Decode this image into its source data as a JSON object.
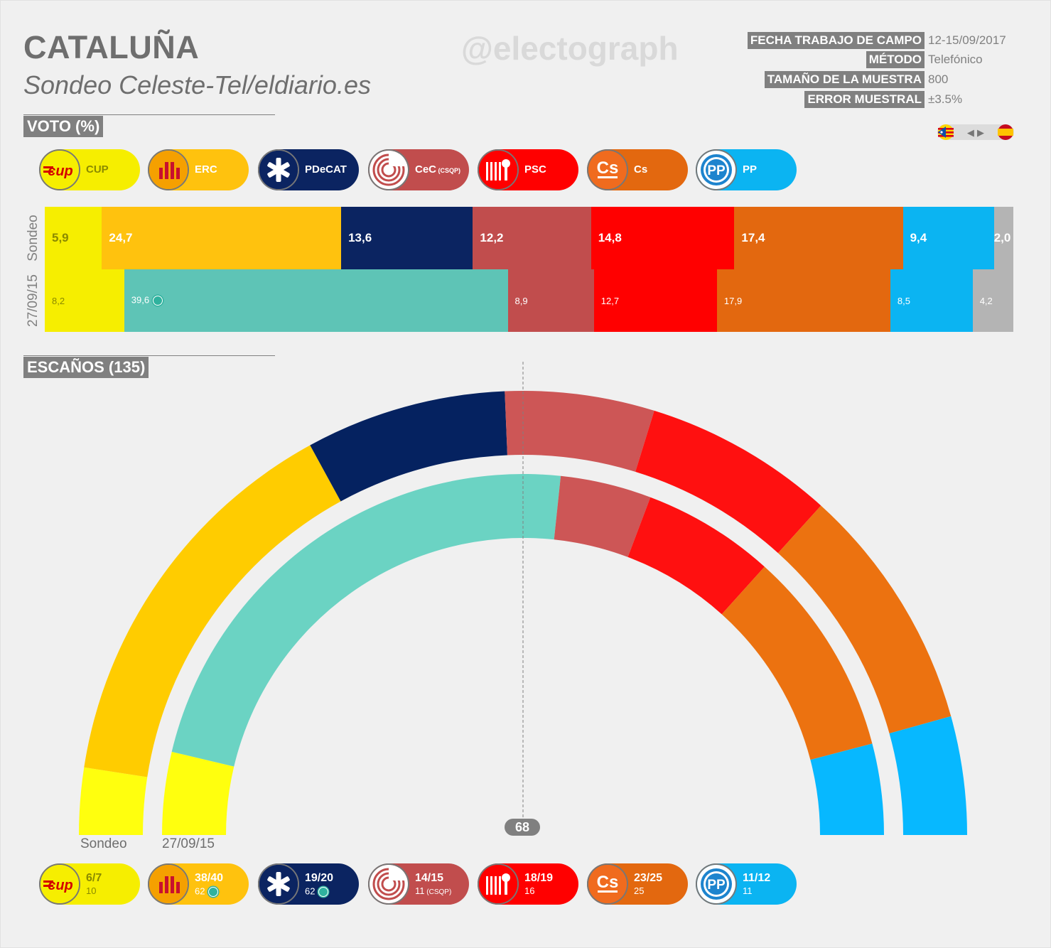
{
  "header": {
    "title": "CATALUÑA",
    "subtitle": "Sondeo Celeste-Tel/eldiario.es",
    "watermark": "@electograph"
  },
  "meta": [
    {
      "key": "FECHA TRABAJO DE CAMPO",
      "value": "12-15/09/2017"
    },
    {
      "key": "MÉTODO",
      "value": "Telefónico"
    },
    {
      "key": "TAMAÑO DE LA MUESTRA",
      "value": "800"
    },
    {
      "key": "ERROR MUESTRAL",
      "value": "±3.5%"
    }
  ],
  "flags": {
    "left": "catalan-flag-icon",
    "arrows": "◀ ▶",
    "right": "spanish-flag-icon"
  },
  "sections": {
    "vote": "VOTO (%)",
    "seats": "ESCAÑOS (135)"
  },
  "parties": [
    {
      "id": "cup",
      "name": "CUP",
      "color": "#f6ee00",
      "logo": "cup-logo-icon",
      "logo_text": "cup",
      "text_color": "#8a8a00",
      "seats": "6/7",
      "prev_seats": "10",
      "jxs": false
    },
    {
      "id": "erc",
      "name": "ERC",
      "color": "#ffc20e",
      "logo": "erc-logo-icon",
      "logo_text": "",
      "text_color": "#ffffff",
      "seats": "38/40",
      "prev_seats": "62",
      "jxs": true
    },
    {
      "id": "pdecat",
      "name": "PDeCAT",
      "color": "#0b2461",
      "logo": "pdecat-logo-icon",
      "logo_text": "",
      "text_color": "#ffffff",
      "seats": "19/20",
      "prev_seats": "62",
      "jxs": true
    },
    {
      "id": "cec",
      "name": "CeC",
      "name_sub": "(CSQP)",
      "color": "#c14d4d",
      "logo": "cec-logo-icon",
      "logo_text": "",
      "text_color": "#ffffff",
      "seats": "14/15",
      "prev_seats": "11",
      "prev_sub": "(CSQP)",
      "jxs": false
    },
    {
      "id": "psc",
      "name": "PSC",
      "color": "#ff0000",
      "logo": "psc-logo-icon",
      "logo_text": "",
      "text_color": "#ffffff",
      "seats": "18/19",
      "prev_seats": "16",
      "jxs": false
    },
    {
      "id": "cs",
      "name": "Cs",
      "color": "#e3680f",
      "logo": "cs-logo-icon",
      "logo_text": "Cs",
      "text_color": "#ffffff",
      "seats": "23/25",
      "prev_seats": "25",
      "jxs": false
    },
    {
      "id": "pp",
      "name": "PP",
      "color": "#0bb4f2",
      "logo": "pp-logo-icon",
      "logo_text": "PP",
      "text_color": "#ffffff",
      "seats": "11/12",
      "prev_seats": "11",
      "jxs": false
    }
  ],
  "chart_data": [
    {
      "type": "bar",
      "orientation": "horizontal-stacked",
      "title": "VOTO (%)",
      "categories": [
        "Sondeo",
        "27/09/15"
      ],
      "series": [
        {
          "name": "CUP",
          "color": "#f6ee00",
          "values": [
            5.9,
            8.2
          ],
          "labels": [
            "5,9",
            "8,2"
          ]
        },
        {
          "name": "ERC",
          "color": "#ffc20e",
          "values": [
            24.7,
            null
          ],
          "labels": [
            "24,7",
            ""
          ]
        },
        {
          "name": "JxSí",
          "color": "#5ec4b6",
          "values": [
            null,
            39.6
          ],
          "labels": [
            "",
            "39,6"
          ]
        },
        {
          "name": "PDeCAT",
          "color": "#0b2461",
          "values": [
            13.6,
            null
          ],
          "labels": [
            "13,6",
            ""
          ]
        },
        {
          "name": "CeC",
          "color": "#c14d4d",
          "values": [
            12.2,
            8.9
          ],
          "labels": [
            "12,2",
            "8,9"
          ]
        },
        {
          "name": "PSC",
          "color": "#ff0000",
          "values": [
            14.8,
            12.7
          ],
          "labels": [
            "14,8",
            "12,7"
          ]
        },
        {
          "name": "Cs",
          "color": "#e3680f",
          "values": [
            17.4,
            17.9
          ],
          "labels": [
            "17,4",
            "17,9"
          ]
        },
        {
          "name": "PP",
          "color": "#0bb4f2",
          "values": [
            9.4,
            8.5
          ],
          "labels": [
            "9,4",
            "8,5"
          ]
        },
        {
          "name": "",
          "color": "#b4b4b4",
          "values": [
            2.0,
            4.2
          ],
          "labels": [
            "2,0",
            "4,2"
          ]
        }
      ]
    },
    {
      "type": "pie",
      "subtype": "parliament-semicircle",
      "title": "ESCAÑOS (135)",
      "total": 135,
      "majority": 68,
      "rings": [
        {
          "name": "Sondeo",
          "segments": [
            {
              "name": "CUP",
              "value": 6.5,
              "color": "#ffff0e"
            },
            {
              "name": "ERC",
              "value": 39,
              "color": "#ffcc00"
            },
            {
              "name": "PDeCAT",
              "value": 19.5,
              "color": "#052260"
            },
            {
              "name": "CeC",
              "value": 14.5,
              "color": "#cd5656"
            },
            {
              "name": "PSC",
              "value": 18.5,
              "color": "#ff1010"
            },
            {
              "name": "Cs",
              "value": 24,
              "color": "#ec7210"
            },
            {
              "name": "PP",
              "value": 11.5,
              "color": "#07b8ff"
            }
          ]
        },
        {
          "name": "27/09/15",
          "segments": [
            {
              "name": "CUP",
              "value": 10,
              "color": "#ffff0e"
            },
            {
              "name": "JxSí",
              "value": 62,
              "color": "#6bd3c3"
            },
            {
              "name": "CeC",
              "value": 11,
              "color": "#cd5656"
            },
            {
              "name": "PSC",
              "value": 16,
              "color": "#ff1010"
            },
            {
              "name": "Cs",
              "value": 25,
              "color": "#ec7210"
            },
            {
              "name": "PP",
              "value": 11,
              "color": "#07b8ff"
            }
          ]
        }
      ]
    }
  ]
}
